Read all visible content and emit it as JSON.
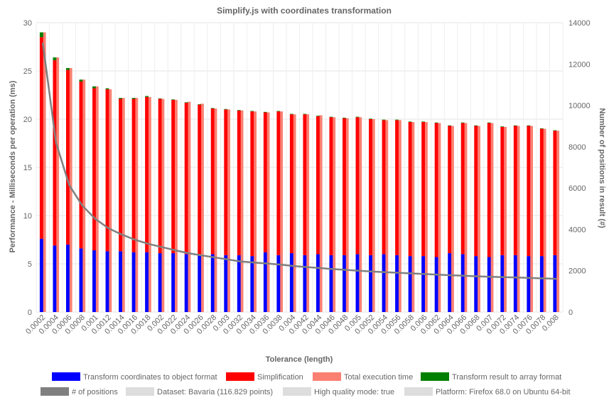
{
  "chart_data": {
    "type": "bar",
    "title": "Simplify.js with coordinates transformation",
    "xlabel": "Tolerance (length)",
    "ylabel_left": "Performance - Milliseconds per operation (ms)",
    "ylabel_right": "Number of positions in result (#)",
    "ylim_left": [
      0,
      30
    ],
    "ylim_right": [
      0,
      14000
    ],
    "yticks_left": [
      "0",
      "5",
      "10",
      "15",
      "20",
      "25",
      "30"
    ],
    "yticks_right": [
      "0",
      "2000",
      "4000",
      "6000",
      "8000",
      "10000",
      "12000",
      "14000"
    ],
    "grid": true,
    "legend_position": "bottom",
    "categories": [
      "0.0002",
      "0.0004",
      "0.0006",
      "0.0008",
      "0.001",
      "0.0012",
      "0.0014",
      "0.0016",
      "0.0018",
      "0.002",
      "0.0022",
      "0.0024",
      "0.0026",
      "0.0028",
      "0.003",
      "0.0032",
      "0.0034",
      "0.0036",
      "0.0038",
      "0.004",
      "0.0042",
      "0.0044",
      "0.0046",
      "0.0048",
      "0.005",
      "0.0052",
      "0.0054",
      "0.0056",
      "0.0058",
      "0.006",
      "0.0062",
      "0.0064",
      "0.0066",
      "0.0068",
      "0.007",
      "0.0072",
      "0.0074",
      "0.0076",
      "0.0078",
      "0.008"
    ],
    "series": [
      {
        "name": "Transform coordinates to object format",
        "color": "#0000ff",
        "stack": "a",
        "values": [
          7.6,
          6.9,
          7.0,
          6.6,
          6.4,
          6.3,
          6.3,
          6.2,
          6.2,
          6.1,
          6.1,
          6.0,
          6.0,
          6.0,
          5.9,
          5.9,
          5.8,
          6.2,
          5.9,
          6.1,
          5.9,
          6.0,
          5.9,
          5.9,
          6.0,
          5.9,
          6.0,
          5.9,
          5.8,
          5.8,
          5.7,
          6.1,
          6.0,
          5.8,
          5.7,
          5.9,
          5.9,
          5.8,
          5.8,
          5.9
        ]
      },
      {
        "name": "Simplification",
        "color": "#ff0000",
        "stack": "a",
        "values": [
          20.9,
          19.2,
          18.1,
          17.3,
          16.8,
          16.8,
          15.8,
          15.9,
          16.1,
          16.0,
          15.9,
          15.7,
          15.5,
          15.1,
          15.1,
          15.0,
          15.0,
          14.5,
          14.9,
          14.4,
          14.6,
          14.3,
          14.3,
          14.2,
          14.2,
          14.1,
          13.9,
          14.0,
          13.9,
          13.9,
          13.9,
          13.2,
          13.6,
          13.5,
          13.9,
          13.3,
          13.4,
          13.5,
          13.2,
          12.9
        ]
      },
      {
        "name": "Transform result to array format",
        "color": "#008000",
        "stack": "a",
        "values": [
          0.5,
          0.3,
          0.2,
          0.2,
          0.2,
          0.1,
          0.1,
          0.1,
          0.1,
          0.05,
          0.05,
          0.05,
          0.05,
          0.05,
          0.05,
          0.05,
          0.05,
          0.05,
          0.05,
          0.05,
          0.05,
          0.05,
          0.05,
          0.05,
          0.05,
          0.05,
          0.05,
          0.05,
          0.05,
          0.05,
          0.05,
          0.05,
          0.05,
          0.05,
          0.05,
          0.05,
          0.05,
          0.05,
          0.05,
          0.05
        ]
      },
      {
        "name": "Total execution time",
        "color": "#fa8072",
        "stack": "b",
        "values": [
          29.0,
          26.4,
          25.3,
          24.1,
          23.4,
          23.1,
          22.2,
          22.2,
          22.3,
          22.1,
          22.0,
          21.8,
          21.6,
          21.1,
          21.0,
          20.9,
          20.8,
          20.7,
          20.8,
          20.5,
          20.5,
          20.4,
          20.2,
          20.1,
          20.2,
          20.0,
          19.9,
          19.9,
          19.7,
          19.7,
          19.6,
          19.3,
          19.6,
          19.3,
          19.6,
          19.2,
          19.3,
          19.3,
          19.0,
          18.8
        ]
      },
      {
        "name": "# of positions",
        "color": "#808080",
        "type": "line",
        "axis": "right",
        "values": [
          13000,
          8200,
          6150,
          5150,
          4500,
          4050,
          3750,
          3500,
          3300,
          3150,
          3000,
          2850,
          2750,
          2650,
          2550,
          2450,
          2400,
          2350,
          2300,
          2230,
          2180,
          2130,
          2080,
          2040,
          2000,
          1960,
          1930,
          1900,
          1870,
          1840,
          1810,
          1780,
          1760,
          1730,
          1710,
          1690,
          1670,
          1650,
          1630,
          1610
        ]
      }
    ],
    "legend_extras": [
      "Dataset: Bavaria (116.829 points)",
      "High quality mode: true",
      "Platform: Firefox 68.0 on Ubuntu 64-bit"
    ],
    "legend_extras_color": "#dddddd"
  }
}
